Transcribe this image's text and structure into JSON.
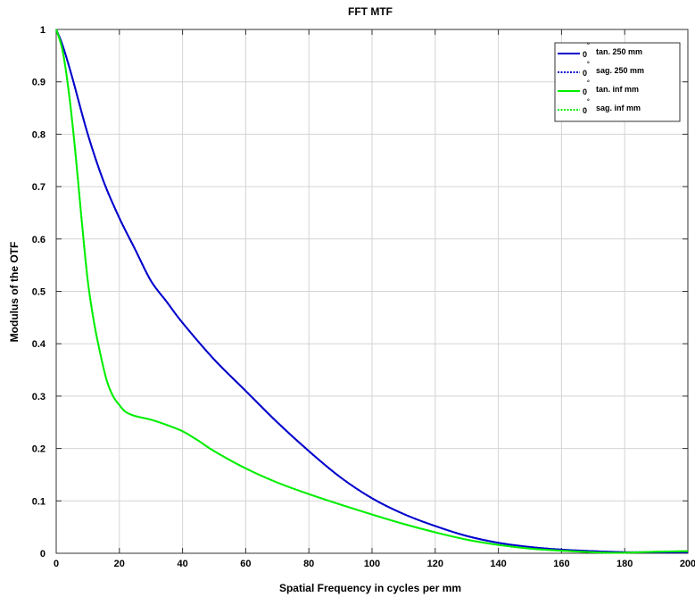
{
  "chart_data": {
    "type": "line",
    "title": "FFT MTF",
    "xlabel": "Spatial Frequency in cycles per mm",
    "ylabel": "Modulus of the OTF",
    "xlim": [
      0,
      200
    ],
    "ylim": [
      0,
      1
    ],
    "xticks": [
      "0",
      "20",
      "40",
      "60",
      "80",
      "100",
      "120",
      "140",
      "160",
      "180",
      "200"
    ],
    "yticks": [
      "0",
      "0.1",
      "0.2",
      "0.3",
      "0.4",
      "0.5",
      "0.6",
      "0.7",
      "0.8",
      "0.9",
      "1"
    ],
    "grid": true,
    "legend_position": "top-right",
    "series": [
      {
        "name": "tan. 250 mm",
        "field_label": "0",
        "field_unit": "°",
        "color": "#0000cc",
        "style": "solid",
        "x": [
          0,
          2,
          5,
          10,
          15,
          20,
          25,
          30,
          35,
          40,
          50,
          60,
          70,
          80,
          90,
          100,
          110,
          120,
          130,
          140,
          150,
          160,
          170,
          180,
          190,
          200
        ],
        "y": [
          1.0,
          0.97,
          0.91,
          0.8,
          0.71,
          0.64,
          0.58,
          0.52,
          0.48,
          0.44,
          0.37,
          0.31,
          0.25,
          0.195,
          0.145,
          0.105,
          0.075,
          0.052,
          0.033,
          0.02,
          0.012,
          0.007,
          0.004,
          0.002,
          0.002,
          0.002
        ]
      },
      {
        "name": "sag. 250 mm",
        "field_label": "0",
        "field_unit": "°",
        "color": "#0000cc",
        "style": "dotted",
        "x": [
          0,
          2,
          5,
          10,
          15,
          20,
          25,
          30,
          35,
          40,
          50,
          60,
          70,
          80,
          90,
          100,
          110,
          120,
          130,
          140,
          150,
          160,
          170,
          180,
          190,
          200
        ],
        "y": [
          1.0,
          0.97,
          0.91,
          0.8,
          0.71,
          0.64,
          0.58,
          0.52,
          0.48,
          0.44,
          0.37,
          0.31,
          0.25,
          0.195,
          0.145,
          0.105,
          0.075,
          0.052,
          0.033,
          0.02,
          0.012,
          0.007,
          0.004,
          0.002,
          0.002,
          0.002
        ]
      },
      {
        "name": "tan. inf mm",
        "field_label": "0",
        "field_unit": "°",
        "color": "#00ee00",
        "style": "solid",
        "x": [
          0,
          2,
          4,
          6,
          8,
          10,
          12,
          14,
          16,
          18,
          20,
          22,
          25,
          30,
          35,
          40,
          45,
          50,
          60,
          70,
          80,
          90,
          100,
          110,
          120,
          130,
          140,
          150,
          160,
          170,
          175,
          180,
          190,
          200
        ],
        "y": [
          1.0,
          0.96,
          0.88,
          0.77,
          0.64,
          0.52,
          0.44,
          0.38,
          0.33,
          0.3,
          0.283,
          0.27,
          0.262,
          0.255,
          0.245,
          0.233,
          0.215,
          0.195,
          0.162,
          0.135,
          0.113,
          0.093,
          0.074,
          0.056,
          0.04,
          0.026,
          0.016,
          0.009,
          0.005,
          0.002,
          0.001,
          0.001,
          0.003,
          0.004
        ]
      },
      {
        "name": "sag. inf mm",
        "field_label": "0",
        "field_unit": "°",
        "color": "#00ee00",
        "style": "dotted",
        "x": [
          0,
          2,
          4,
          6,
          8,
          10,
          12,
          14,
          16,
          18,
          20,
          22,
          25,
          30,
          35,
          40,
          45,
          50,
          60,
          70,
          80,
          90,
          100,
          110,
          120,
          130,
          140,
          150,
          160,
          170,
          175,
          180,
          190,
          200
        ],
        "y": [
          1.0,
          0.96,
          0.88,
          0.77,
          0.64,
          0.52,
          0.44,
          0.38,
          0.33,
          0.3,
          0.283,
          0.27,
          0.262,
          0.255,
          0.245,
          0.233,
          0.215,
          0.195,
          0.162,
          0.135,
          0.113,
          0.093,
          0.074,
          0.056,
          0.04,
          0.026,
          0.016,
          0.009,
          0.005,
          0.002,
          0.001,
          0.001,
          0.003,
          0.004
        ]
      }
    ]
  }
}
